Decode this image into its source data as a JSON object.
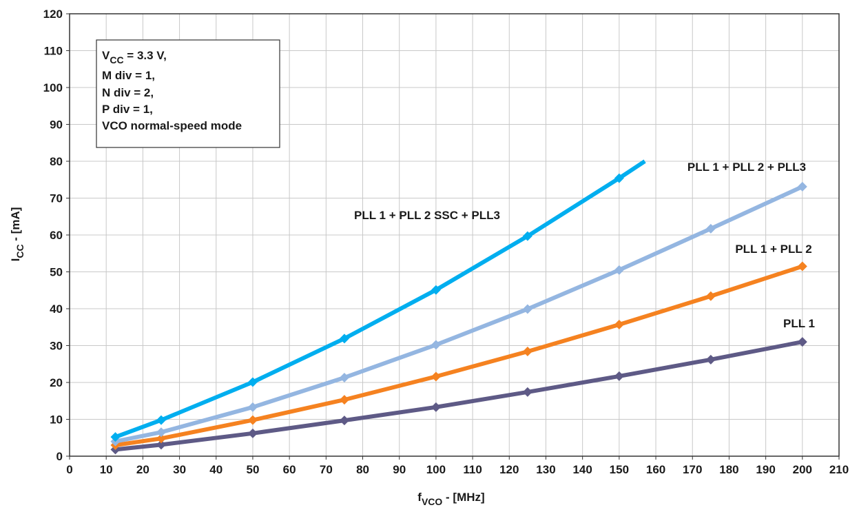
{
  "chart_data": {
    "type": "line",
    "xlabel": {
      "main": "f",
      "sub": "VCO",
      "rest": " - [MHz]"
    },
    "ylabel": {
      "main": "I",
      "sub": "CC",
      "rest": " - [mA]"
    },
    "xlim": [
      0,
      210
    ],
    "ylim": [
      0,
      120
    ],
    "xticks": [
      0,
      10,
      20,
      30,
      40,
      50,
      60,
      70,
      80,
      90,
      100,
      110,
      120,
      130,
      140,
      150,
      160,
      170,
      180,
      190,
      200,
      210
    ],
    "yticks": [
      0,
      10,
      20,
      30,
      40,
      50,
      60,
      70,
      80,
      90,
      100,
      110,
      120
    ],
    "grid": true,
    "annotation": {
      "line1": {
        "main": "V",
        "sub": "CC",
        "rest": " = 3.3 V,"
      },
      "lines": [
        "M div = 1,",
        "N div = 2,",
        "P div = 1,",
        "VCO normal-speed mode"
      ]
    },
    "series": [
      {
        "name": "PLL 1 + PLL 2 SSC + PLL3",
        "color": "#00aeef",
        "points": [
          [
            12.5,
            5.2
          ],
          [
            25,
            9.8
          ],
          [
            50,
            20.1
          ],
          [
            75,
            31.9
          ],
          [
            100,
            45.1
          ],
          [
            125,
            59.7
          ],
          [
            150,
            75.4
          ],
          [
            157,
            80
          ]
        ],
        "marker_count": 7
      },
      {
        "name": "PLL 1 + PLL 2 + PLL3",
        "color": "#94b6e1",
        "points": [
          [
            12.5,
            4.0
          ],
          [
            25,
            6.5
          ],
          [
            50,
            13.3
          ],
          [
            75,
            21.3
          ],
          [
            100,
            30.2
          ],
          [
            125,
            39.9
          ],
          [
            150,
            50.5
          ],
          [
            175,
            61.7
          ],
          [
            200,
            73.1
          ]
        ],
        "marker_count": 9
      },
      {
        "name": "PLL 1 + PLL 2",
        "color": "#f58220",
        "points": [
          [
            12.5,
            3.0
          ],
          [
            25,
            4.8
          ],
          [
            50,
            9.8
          ],
          [
            75,
            15.3
          ],
          [
            100,
            21.6
          ],
          [
            125,
            28.4
          ],
          [
            150,
            35.7
          ],
          [
            175,
            43.4
          ],
          [
            200,
            51.5
          ]
        ],
        "marker_count": 9
      },
      {
        "name": "PLL 1",
        "color": "#5e5a86",
        "points": [
          [
            12.5,
            1.8
          ],
          [
            25,
            3.1
          ],
          [
            50,
            6.2
          ],
          [
            75,
            9.7
          ],
          [
            100,
            13.3
          ],
          [
            125,
            17.4
          ],
          [
            150,
            21.7
          ],
          [
            175,
            26.2
          ],
          [
            200,
            31.0
          ]
        ],
        "marker_count": 9
      }
    ]
  }
}
